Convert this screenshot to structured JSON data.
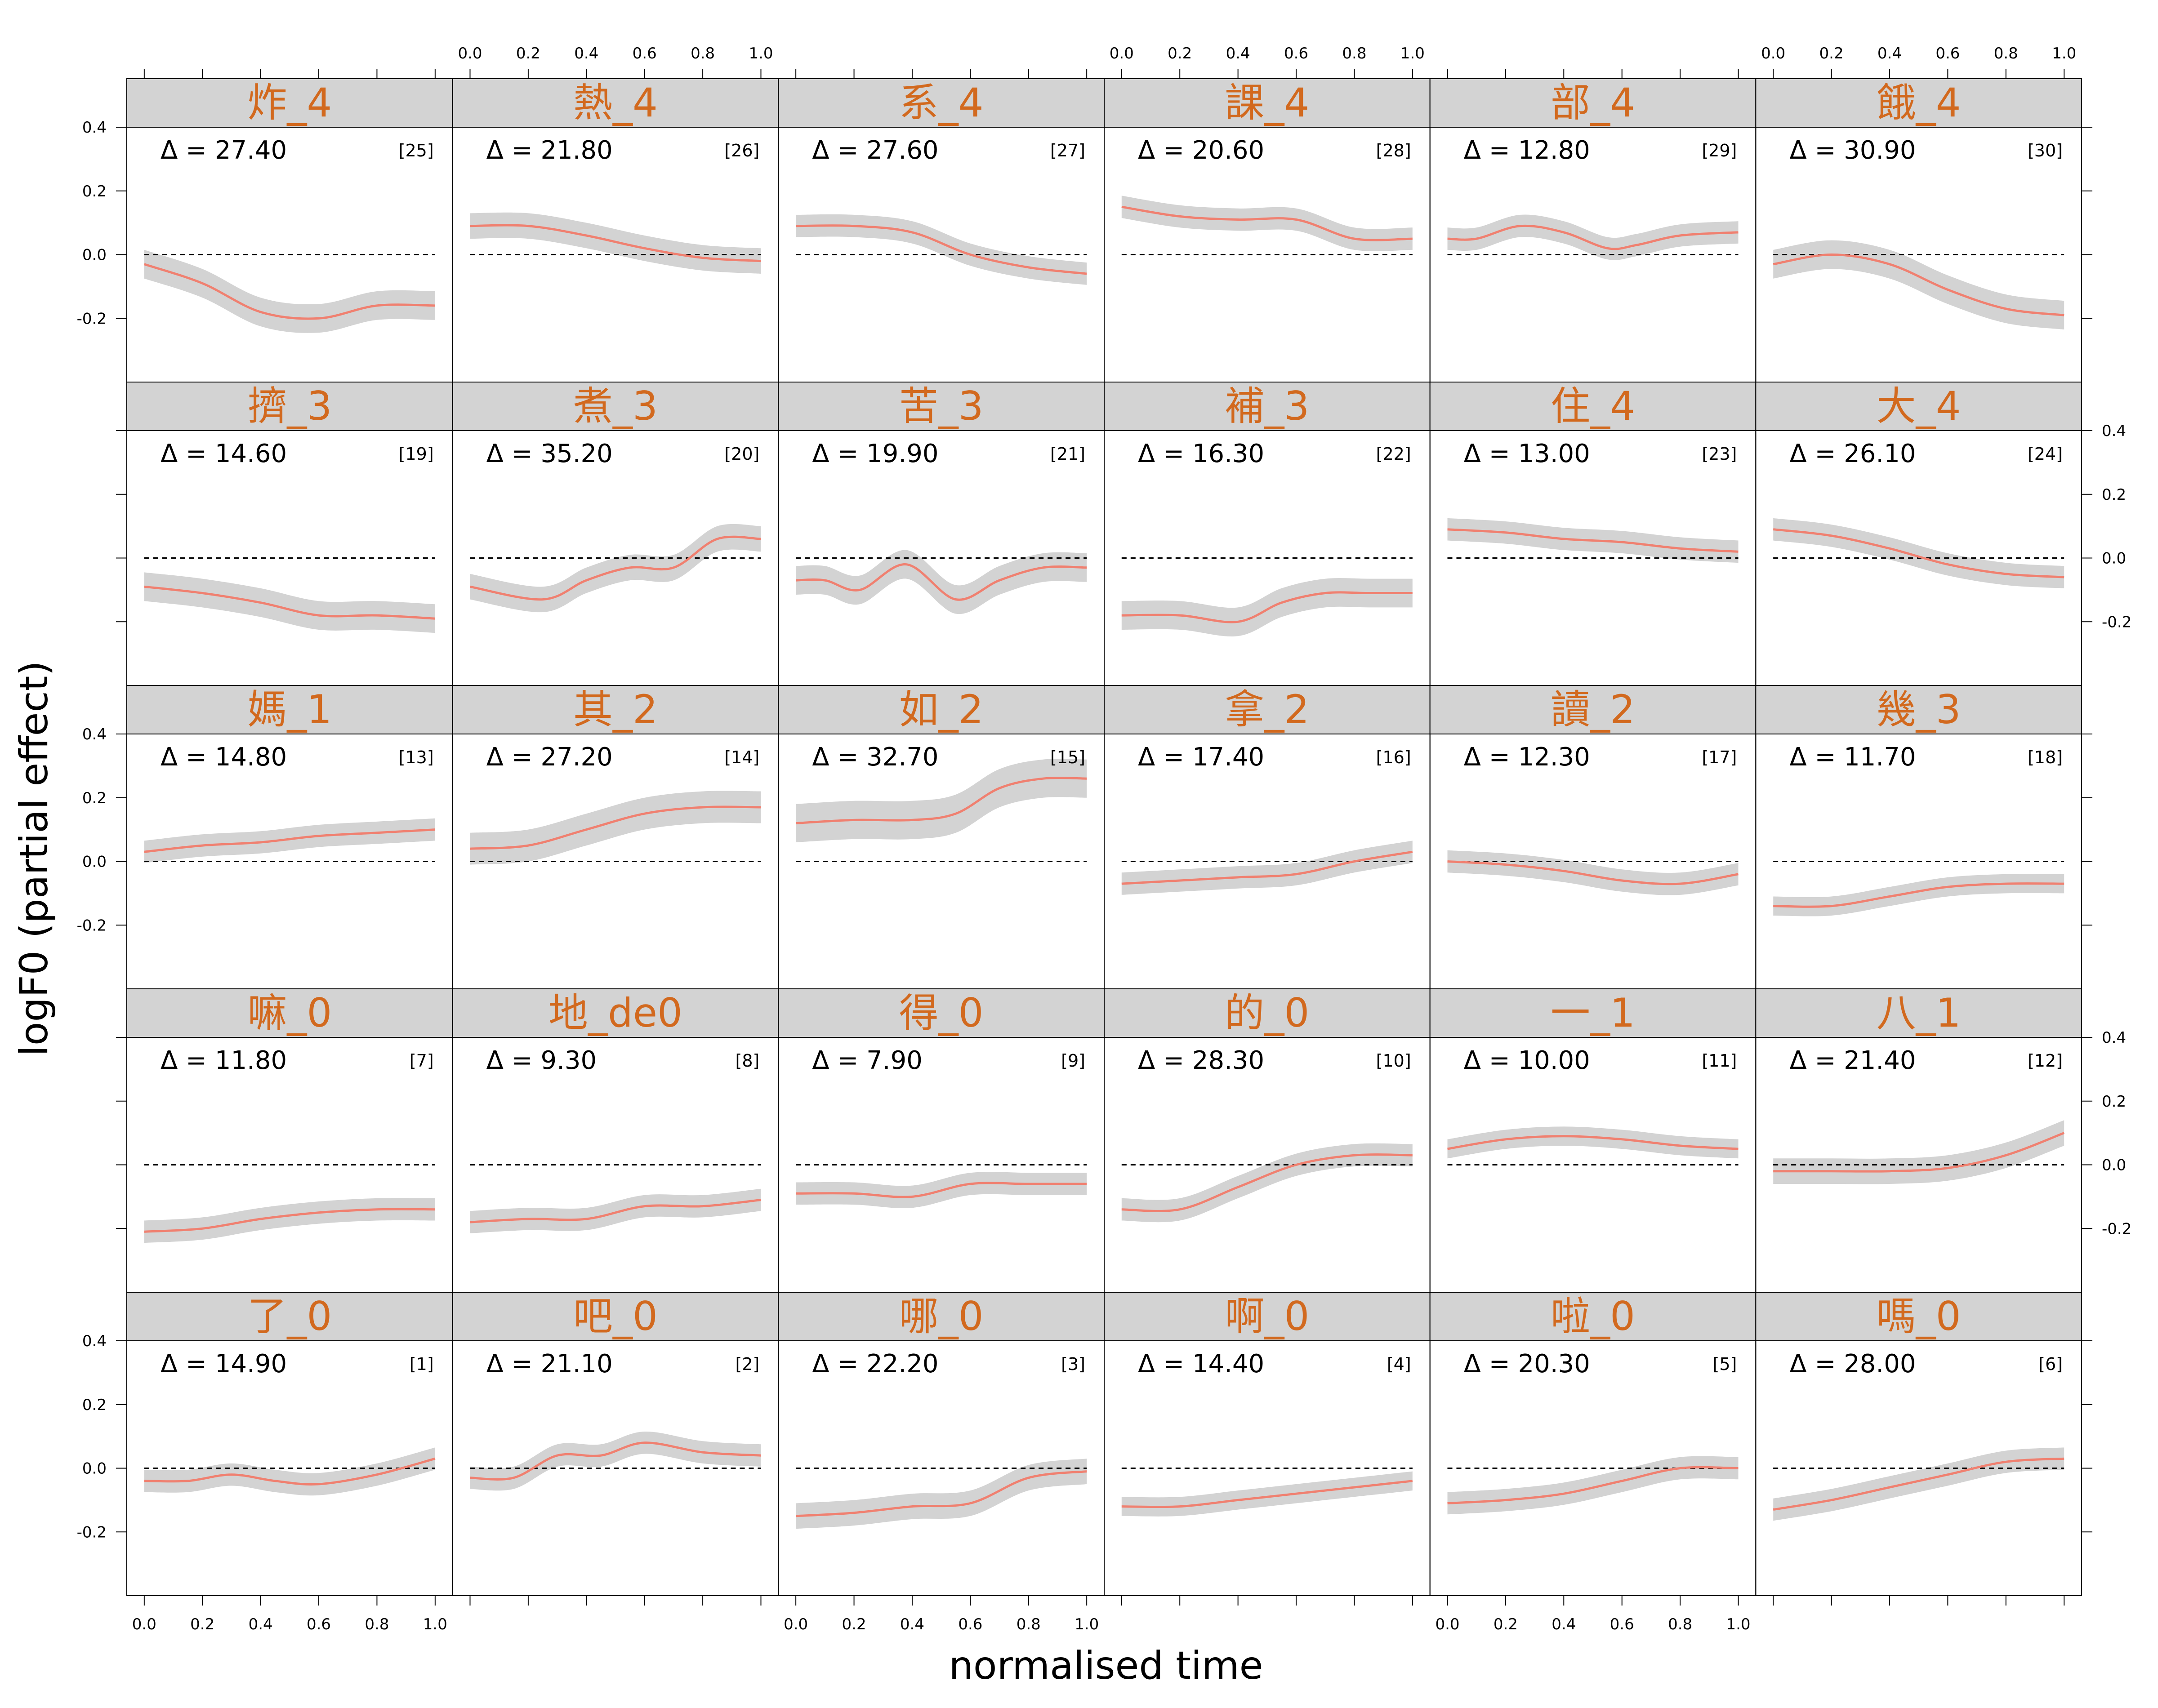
{
  "chart_data": {
    "type": "line",
    "xlabel": "normalised time",
    "ylabel": "logF0 (partial effect)",
    "xlim": [
      -0.06,
      1.06
    ],
    "ylim": [
      -0.4,
      0.4
    ],
    "x_ticks": [
      "0.0",
      "0.2",
      "0.4",
      "0.6",
      "0.8",
      "1.0"
    ],
    "y_ticks": [
      "0.4",
      "0.2",
      "0.0",
      "-0.2"
    ],
    "reference_line": 0,
    "colors": {
      "curve": "#F08070",
      "band": "#D3D3D3",
      "strip_bg": "#D3D3D3",
      "strip_text": "#D2691E"
    },
    "panels": [
      {
        "label": "炸_4",
        "delta": "Δ = 27.40",
        "index": "[25]",
        "x": [
          0,
          0.2,
          0.4,
          0.6,
          0.8,
          1.0
        ],
        "y": [
          -0.03,
          -0.09,
          -0.18,
          -0.2,
          -0.16,
          -0.16
        ],
        "halfwidth": 0.045
      },
      {
        "label": "熱_4",
        "delta": "Δ = 21.80",
        "index": "[26]",
        "x": [
          0,
          0.2,
          0.4,
          0.6,
          0.8,
          1.0
        ],
        "y": [
          0.09,
          0.09,
          0.06,
          0.02,
          -0.01,
          -0.02
        ],
        "halfwidth": 0.04
      },
      {
        "label": "系_4",
        "delta": "Δ = 27.60",
        "index": "[27]",
        "x": [
          0,
          0.2,
          0.4,
          0.6,
          0.8,
          1.0
        ],
        "y": [
          0.09,
          0.09,
          0.07,
          0.0,
          -0.04,
          -0.06
        ],
        "halfwidth": 0.035
      },
      {
        "label": "課_4",
        "delta": "Δ = 20.60",
        "index": "[28]",
        "x": [
          0,
          0.2,
          0.4,
          0.6,
          0.8,
          1.0
        ],
        "y": [
          0.15,
          0.12,
          0.11,
          0.11,
          0.05,
          0.05
        ],
        "halfwidth": 0.035
      },
      {
        "label": "部_4",
        "delta": "Δ = 12.80",
        "index": "[29]",
        "x": [
          0,
          0.1,
          0.25,
          0.4,
          0.55,
          0.65,
          0.8,
          1.0
        ],
        "y": [
          0.05,
          0.05,
          0.09,
          0.07,
          0.02,
          0.03,
          0.06,
          0.07
        ],
        "halfwidth": 0.035
      },
      {
        "label": "餓_4",
        "delta": "Δ = 30.90",
        "index": "[30]",
        "x": [
          0,
          0.2,
          0.4,
          0.6,
          0.8,
          1.0
        ],
        "y": [
          -0.03,
          0.0,
          -0.03,
          -0.11,
          -0.17,
          -0.19
        ],
        "halfwidth": 0.045
      },
      {
        "label": "擠_3",
        "delta": "Δ = 14.60",
        "index": "[19]",
        "x": [
          0,
          0.2,
          0.4,
          0.6,
          0.8,
          1.0
        ],
        "y": [
          -0.09,
          -0.11,
          -0.14,
          -0.18,
          -0.18,
          -0.19
        ],
        "halfwidth": 0.045
      },
      {
        "label": "煮_3",
        "delta": "Δ = 35.20",
        "index": "[20]",
        "x": [
          0,
          0.25,
          0.4,
          0.55,
          0.7,
          0.85,
          1.0
        ],
        "y": [
          -0.09,
          -0.13,
          -0.07,
          -0.03,
          -0.03,
          0.06,
          0.06
        ],
        "halfwidth": 0.04
      },
      {
        "label": "苦_3",
        "delta": "Δ = 19.90",
        "index": "[21]",
        "x": [
          0,
          0.1,
          0.22,
          0.38,
          0.55,
          0.7,
          0.85,
          1.0
        ],
        "y": [
          -0.07,
          -0.07,
          -0.1,
          -0.02,
          -0.13,
          -0.07,
          -0.03,
          -0.03
        ],
        "halfwidth": 0.045
      },
      {
        "label": "補_3",
        "delta": "Δ = 16.30",
        "index": "[22]",
        "x": [
          0,
          0.2,
          0.4,
          0.55,
          0.7,
          0.85,
          1.0
        ],
        "y": [
          -0.18,
          -0.18,
          -0.2,
          -0.14,
          -0.11,
          -0.11,
          -0.11
        ],
        "halfwidth": 0.045
      },
      {
        "label": "住_4",
        "delta": "Δ = 13.00",
        "index": "[23]",
        "x": [
          0,
          0.2,
          0.4,
          0.6,
          0.8,
          1.0
        ],
        "y": [
          0.09,
          0.08,
          0.06,
          0.05,
          0.03,
          0.02
        ],
        "halfwidth": 0.035
      },
      {
        "label": "大_4",
        "delta": "Δ = 26.10",
        "index": "[24]",
        "x": [
          0,
          0.2,
          0.4,
          0.6,
          0.8,
          1.0
        ],
        "y": [
          0.09,
          0.07,
          0.03,
          -0.02,
          -0.05,
          -0.06
        ],
        "halfwidth": 0.035
      },
      {
        "label": "媽_1",
        "delta": "Δ = 14.80",
        "index": "[13]",
        "x": [
          0,
          0.2,
          0.4,
          0.6,
          0.8,
          1.0
        ],
        "y": [
          0.03,
          0.05,
          0.06,
          0.08,
          0.09,
          0.1
        ],
        "halfwidth": 0.035
      },
      {
        "label": "其_2",
        "delta": "Δ = 27.20",
        "index": "[14]",
        "x": [
          0,
          0.2,
          0.4,
          0.6,
          0.8,
          1.0
        ],
        "y": [
          0.04,
          0.05,
          0.1,
          0.15,
          0.17,
          0.17
        ],
        "halfwidth": 0.05
      },
      {
        "label": "如_2",
        "delta": "Δ = 32.70",
        "index": "[15]",
        "x": [
          0,
          0.2,
          0.4,
          0.55,
          0.7,
          0.85,
          1.0
        ],
        "y": [
          0.12,
          0.13,
          0.13,
          0.15,
          0.23,
          0.26,
          0.26
        ],
        "halfwidth": 0.06
      },
      {
        "label": "拿_2",
        "delta": "Δ = 17.40",
        "index": "[16]",
        "x": [
          0,
          0.2,
          0.4,
          0.6,
          0.8,
          1.0
        ],
        "y": [
          -0.07,
          -0.06,
          -0.05,
          -0.04,
          0.0,
          0.03
        ],
        "halfwidth": 0.035
      },
      {
        "label": "讀_2",
        "delta": "Δ = 12.30",
        "index": "[17]",
        "x": [
          0,
          0.2,
          0.4,
          0.6,
          0.8,
          1.0
        ],
        "y": [
          0.0,
          -0.01,
          -0.03,
          -0.06,
          -0.07,
          -0.04
        ],
        "halfwidth": 0.035
      },
      {
        "label": "幾_3",
        "delta": "Δ = 11.70",
        "index": "[18]",
        "x": [
          0,
          0.2,
          0.4,
          0.6,
          0.8,
          1.0
        ],
        "y": [
          -0.14,
          -0.14,
          -0.11,
          -0.08,
          -0.07,
          -0.07
        ],
        "halfwidth": 0.03
      },
      {
        "label": "嘛_0",
        "delta": "Δ = 11.80",
        "index": "[7]",
        "x": [
          0,
          0.2,
          0.4,
          0.6,
          0.8,
          1.0
        ],
        "y": [
          -0.21,
          -0.2,
          -0.17,
          -0.15,
          -0.14,
          -0.14
        ],
        "halfwidth": 0.035
      },
      {
        "label": "地_de0",
        "delta": "Δ =  9.30",
        "index": "[8]",
        "x": [
          0,
          0.2,
          0.4,
          0.6,
          0.8,
          1.0
        ],
        "y": [
          -0.18,
          -0.17,
          -0.17,
          -0.13,
          -0.13,
          -0.11
        ],
        "halfwidth": 0.035
      },
      {
        "label": "得_0",
        "delta": "Δ =  7.90",
        "index": "[9]",
        "x": [
          0,
          0.2,
          0.4,
          0.6,
          0.8,
          1.0
        ],
        "y": [
          -0.09,
          -0.09,
          -0.1,
          -0.06,
          -0.06,
          -0.06
        ],
        "halfwidth": 0.035
      },
      {
        "label": "的_0",
        "delta": "Δ = 28.30",
        "index": "[10]",
        "x": [
          0,
          0.2,
          0.4,
          0.6,
          0.8,
          1.0
        ],
        "y": [
          -0.14,
          -0.14,
          -0.07,
          0.0,
          0.03,
          0.03
        ],
        "halfwidth": 0.035
      },
      {
        "label": "一_1",
        "delta": "Δ = 10.00",
        "index": "[11]",
        "x": [
          0,
          0.2,
          0.4,
          0.6,
          0.8,
          1.0
        ],
        "y": [
          0.05,
          0.08,
          0.09,
          0.08,
          0.06,
          0.05
        ],
        "halfwidth": 0.03
      },
      {
        "label": "八_1",
        "delta": "Δ = 21.40",
        "index": "[12]",
        "x": [
          0,
          0.2,
          0.4,
          0.6,
          0.8,
          1.0
        ],
        "y": [
          -0.02,
          -0.02,
          -0.02,
          -0.01,
          0.03,
          0.1
        ],
        "halfwidth": 0.04
      },
      {
        "label": "了_0",
        "delta": "Δ = 14.90",
        "index": "[1]",
        "x": [
          0,
          0.15,
          0.3,
          0.45,
          0.6,
          0.8,
          1.0
        ],
        "y": [
          -0.04,
          -0.04,
          -0.02,
          -0.04,
          -0.05,
          -0.02,
          0.03
        ],
        "halfwidth": 0.035
      },
      {
        "label": "吧_0",
        "delta": "Δ = 21.10",
        "index": "[2]",
        "x": [
          0,
          0.15,
          0.3,
          0.45,
          0.6,
          0.8,
          1.0
        ],
        "y": [
          -0.03,
          -0.03,
          0.04,
          0.04,
          0.08,
          0.05,
          0.04
        ],
        "halfwidth": 0.035
      },
      {
        "label": "哪_0",
        "delta": "Δ = 22.20",
        "index": "[3]",
        "x": [
          0,
          0.2,
          0.4,
          0.6,
          0.8,
          1.0
        ],
        "y": [
          -0.15,
          -0.14,
          -0.12,
          -0.11,
          -0.03,
          -0.01
        ],
        "halfwidth": 0.04
      },
      {
        "label": "啊_0",
        "delta": "Δ = 14.40",
        "index": "[4]",
        "x": [
          0,
          0.2,
          0.4,
          0.6,
          0.8,
          1.0
        ],
        "y": [
          -0.12,
          -0.12,
          -0.1,
          -0.08,
          -0.06,
          -0.04
        ],
        "halfwidth": 0.03
      },
      {
        "label": "啦_0",
        "delta": "Δ = 20.30",
        "index": "[5]",
        "x": [
          0,
          0.2,
          0.4,
          0.6,
          0.8,
          1.0
        ],
        "y": [
          -0.11,
          -0.1,
          -0.08,
          -0.04,
          0.0,
          0.0
        ],
        "halfwidth": 0.035
      },
      {
        "label": "嗎_0",
        "delta": "Δ = 28.00",
        "index": "[6]",
        "x": [
          0,
          0.2,
          0.4,
          0.6,
          0.8,
          1.0
        ],
        "y": [
          -0.13,
          -0.1,
          -0.06,
          -0.02,
          0.02,
          0.03
        ],
        "halfwidth": 0.035
      }
    ]
  }
}
